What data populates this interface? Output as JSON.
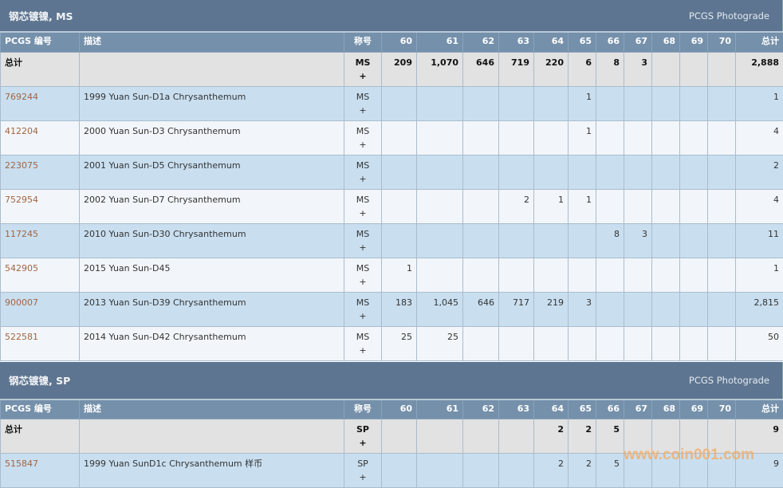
{
  "photograde_label": "PCGS Photograde",
  "columns": [
    "PCGS 编号",
    "描述",
    "称号",
    "60",
    "61",
    "62",
    "63",
    "64",
    "65",
    "66",
    "67",
    "68",
    "69",
    "70",
    "总计"
  ],
  "sections": [
    {
      "title": "钢芯镀镍, MS",
      "total": {
        "label": "总计",
        "designation": "MS",
        "plus": "+",
        "values": [
          "209",
          "1,070",
          "646",
          "719",
          "220",
          "6",
          "8",
          "3",
          "",
          "",
          ""
        ],
        "total": "2,888"
      },
      "rows": [
        {
          "pcgs": "769244",
          "desc": "1999 Yuan Sun-D1a Chrysanthemum",
          "designation": "MS",
          "plus": "+",
          "values": [
            "",
            "",
            "",
            "",
            "",
            "1",
            "",
            "",
            "",
            "",
            ""
          ],
          "total": "1"
        },
        {
          "pcgs": "412204",
          "desc": "2000 Yuan Sun-D3 Chrysanthemum",
          "designation": "MS",
          "plus": "+",
          "values": [
            "",
            "",
            "",
            "",
            "",
            "1",
            "",
            "",
            "",
            "",
            ""
          ],
          "total": "4"
        },
        {
          "pcgs": "223075",
          "desc": "2001 Yuan Sun-D5 Chrysanthemum",
          "designation": "MS",
          "plus": "+",
          "values": [
            "",
            "",
            "",
            "",
            "",
            "",
            "",
            "",
            "",
            "",
            ""
          ],
          "total": "2"
        },
        {
          "pcgs": "752954",
          "desc": "2002 Yuan Sun-D7 Chrysanthemum",
          "designation": "MS",
          "plus": "+",
          "values": [
            "",
            "",
            "",
            "2",
            "1",
            "1",
            "",
            "",
            "",
            "",
            ""
          ],
          "total": "4"
        },
        {
          "pcgs": "117245",
          "desc": "2010 Yuan Sun-D30 Chrysanthemum",
          "designation": "MS",
          "plus": "+",
          "values": [
            "",
            "",
            "",
            "",
            "",
            "",
            "8",
            "3",
            "",
            "",
            ""
          ],
          "total": "11"
        },
        {
          "pcgs": "542905",
          "desc": "2015 Yuan Sun-D45",
          "designation": "MS",
          "plus": "+",
          "values": [
            "1",
            "",
            "",
            "",
            "",
            "",
            "",
            "",
            "",
            "",
            ""
          ],
          "total": "1"
        },
        {
          "pcgs": "900007",
          "desc": "2013 Yuan Sun-D39 Chrysanthemum",
          "designation": "MS",
          "plus": "+",
          "values": [
            "183",
            "1,045",
            "646",
            "717",
            "219",
            "3",
            "",
            "",
            "",
            "",
            ""
          ],
          "total": "2,815"
        },
        {
          "pcgs": "522581",
          "desc": "2014 Yuan Sun-D42 Chrysanthemum",
          "designation": "MS",
          "plus": "+",
          "values": [
            "25",
            "25",
            "",
            "",
            "",
            "",
            "",
            "",
            "",
            "",
            ""
          ],
          "total": "50"
        }
      ]
    },
    {
      "title": "钢芯镀镍, SP",
      "total": {
        "label": "总计",
        "designation": "SP",
        "plus": "+",
        "values": [
          "",
          "",
          "",
          "",
          "2",
          "2",
          "5",
          "",
          "",
          "",
          ""
        ],
        "total": "9"
      },
      "rows": [
        {
          "pcgs": "515847",
          "desc": "1999 Yuan SunD1c Chrysanthemum 样币",
          "designation": "SP",
          "plus": "+",
          "values": [
            "",
            "",
            "",
            "",
            "2",
            "2",
            "5",
            "",
            "",
            "",
            ""
          ],
          "total": "9"
        }
      ]
    }
  ],
  "watermark": "www.coin001.com"
}
